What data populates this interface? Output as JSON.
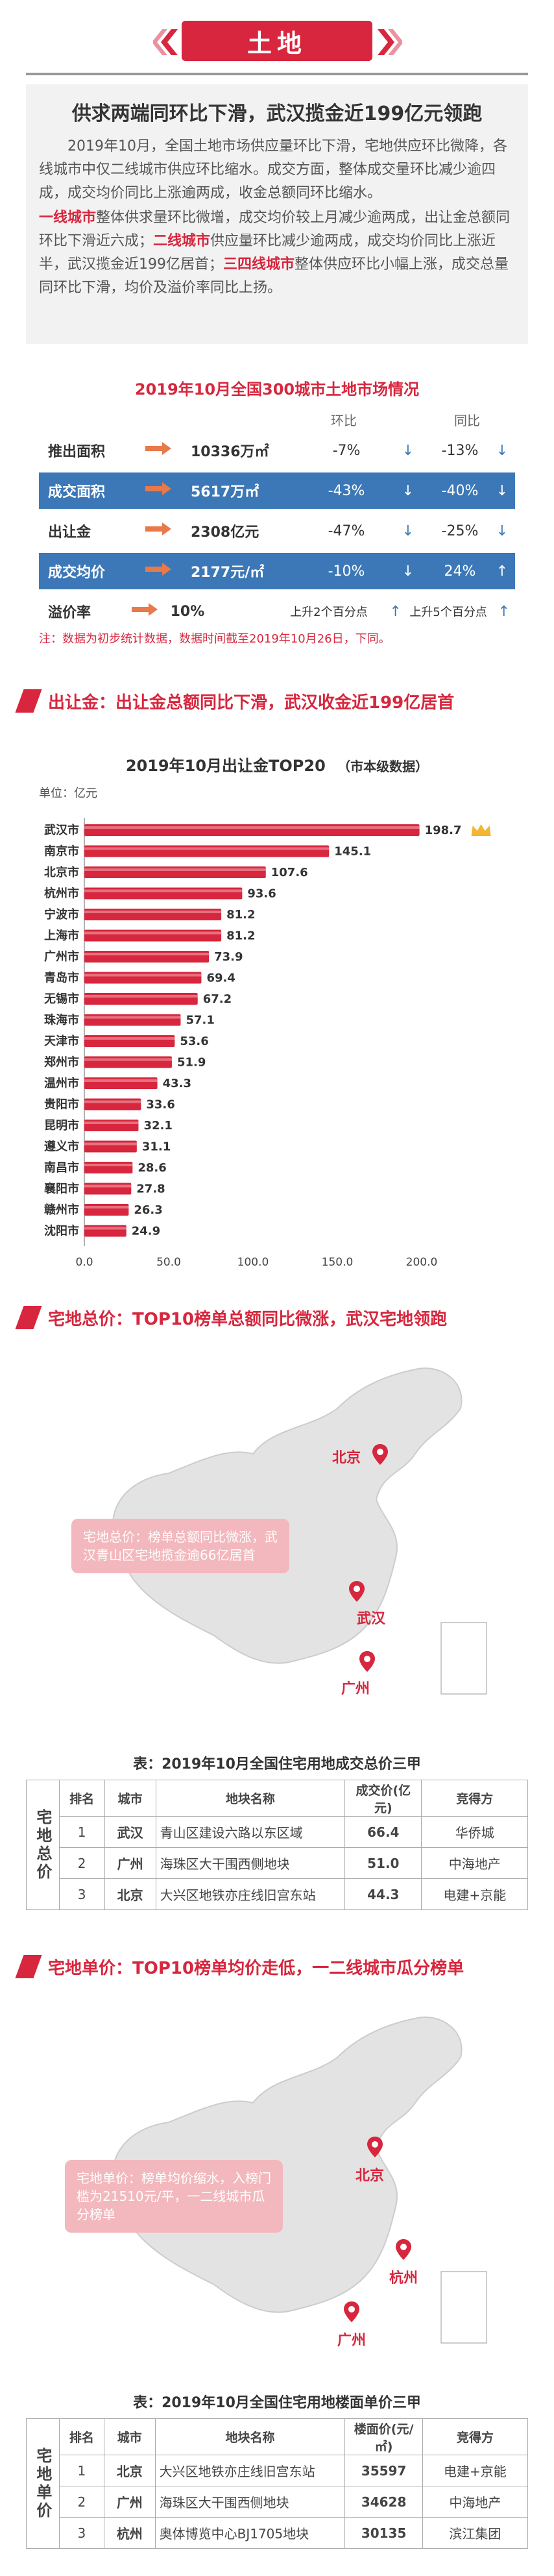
{
  "header": {
    "tag": "土地"
  },
  "lead": {
    "title": "供求两端同环比下滑，武汉揽金近199亿元领跑",
    "p1": "2019年10月，全国土地市场供应量环比下滑，宅地供应环比微降，各线城市中仅二线城市供应环比缩水。成交方面，整体成交量环比减少逾四成，成交均价同比上涨逾两成，收金总额同环比缩水。",
    "p2_a": "一线城市",
    "p2_b": "整体供求量环比微增，成交均价较上月减少逾两成，出让金总额同环比下滑近六成；",
    "p2_c": "二线城市",
    "p2_d": "供应量环比减少逾两成，成交均价同比上涨近半，武汉揽金近199亿居首；",
    "p2_e": "三四线城市",
    "p2_f": "整体供应环比小幅上涨，成交总量同环比下滑，均价及溢价率同比上扬。"
  },
  "market": {
    "title": "2019年10月全国300城市土地市场情况",
    "col_mom": "环比",
    "col_yoy": "同比",
    "rows": [
      {
        "label": "推出面积",
        "value": "10336万㎡",
        "mom": "-7%",
        "mom_arrow": "↓",
        "yoy": "-13%",
        "yoy_arrow": "↓"
      },
      {
        "label": "成交面积",
        "value": "5617万㎡",
        "mom": "-43%",
        "mom_arrow": "↓",
        "yoy": "-40%",
        "yoy_arrow": "↓"
      },
      {
        "label": "出让金",
        "value": "2308亿元",
        "mom": "-47%",
        "mom_arrow": "↓",
        "yoy": "-25%",
        "yoy_arrow": "↓"
      },
      {
        "label": "成交均价",
        "value": "2177元/㎡",
        "mom": "-10%",
        "mom_arrow": "↓",
        "yoy": "24%",
        "yoy_arrow": "↑"
      },
      {
        "label": "溢价率",
        "value": "10%",
        "mom": "上升2个百分点",
        "mom_arrow": "↑",
        "yoy": "上升5个百分点",
        "yoy_arrow": "↑"
      }
    ],
    "note": "注：数据为初步统计数据，数据时间截至2019年10月26日，下同。"
  },
  "sec1": {
    "title": "出让金：出让金总额同比下滑，武汉收金近199亿居首"
  },
  "chart_data": {
    "type": "bar",
    "title": "2019年10月出让金TOP20",
    "subtitle": "（市本级数据）",
    "unit_label": "单位：亿元",
    "categories": [
      "武汉市",
      "南京市",
      "北京市",
      "杭州市",
      "宁波市",
      "上海市",
      "广州市",
      "青岛市",
      "无锡市",
      "珠海市",
      "天津市",
      "郑州市",
      "温州市",
      "贵阳市",
      "昆明市",
      "遵义市",
      "南昌市",
      "襄阳市",
      "赣州市",
      "沈阳市"
    ],
    "values": [
      198.7,
      145.1,
      107.6,
      93.6,
      81.2,
      81.2,
      73.9,
      69.4,
      67.2,
      57.1,
      53.6,
      51.9,
      43.3,
      33.6,
      32.1,
      31.1,
      28.6,
      27.8,
      26.3,
      24.9
    ],
    "xlim": [
      0,
      200
    ],
    "xticks": [
      "0.0",
      "50.0",
      "100.0",
      "150.0",
      "200.0"
    ],
    "bar_color": "#d7263d",
    "orientation": "horizontal"
  },
  "sec2": {
    "title": "宅地总价：TOP10榜单总额同比微涨，武汉宅地领跑"
  },
  "map1": {
    "callout": "宅地总价：榜单总额同比微涨，武汉青山区宅地揽金逾66亿居首",
    "cities": [
      "北京",
      "武汉",
      "广州"
    ]
  },
  "table1": {
    "title": "表：2019年10月全国住宅用地成交总价三甲",
    "side": "宅地总价",
    "headers": [
      "排名",
      "城市",
      "地块名称",
      "成交价(亿元)",
      "竞得方"
    ],
    "rows": [
      [
        "1",
        "武汉",
        "青山区建设六路以东区域",
        "66.4",
        "华侨城"
      ],
      [
        "2",
        "广州",
        "海珠区大干围西侧地块",
        "51.0",
        "中海地产"
      ],
      [
        "3",
        "北京",
        "大兴区地铁亦庄线旧宫东站",
        "44.3",
        "电建+京能"
      ]
    ]
  },
  "sec3": {
    "title": "宅地单价：TOP10榜单均价走低，一二线城市瓜分榜单"
  },
  "map2": {
    "callout": "宅地单价：榜单均价缩水，入榜门槛为21510元/平，一二线城市瓜分榜单",
    "cities": [
      "北京",
      "杭州",
      "广州"
    ]
  },
  "table2": {
    "title": "表：2019年10月全国住宅用地楼面单价三甲",
    "side": "宅地单价",
    "headers": [
      "排名",
      "城市",
      "地块名称",
      "楼面价(元/㎡)",
      "竞得方"
    ],
    "rows": [
      [
        "1",
        "北京",
        "大兴区地铁亦庄线旧宫东站",
        "35597",
        "电建+京能"
      ],
      [
        "2",
        "广州",
        "海珠区大干围西侧地块",
        "34628",
        "中海地产"
      ],
      [
        "3",
        "杭州",
        "奥体博览中心BJ1705地块",
        "30135",
        "滨江集团"
      ]
    ]
  },
  "colors": {
    "accent": "#d7263d",
    "blue": "#3c78b8"
  }
}
